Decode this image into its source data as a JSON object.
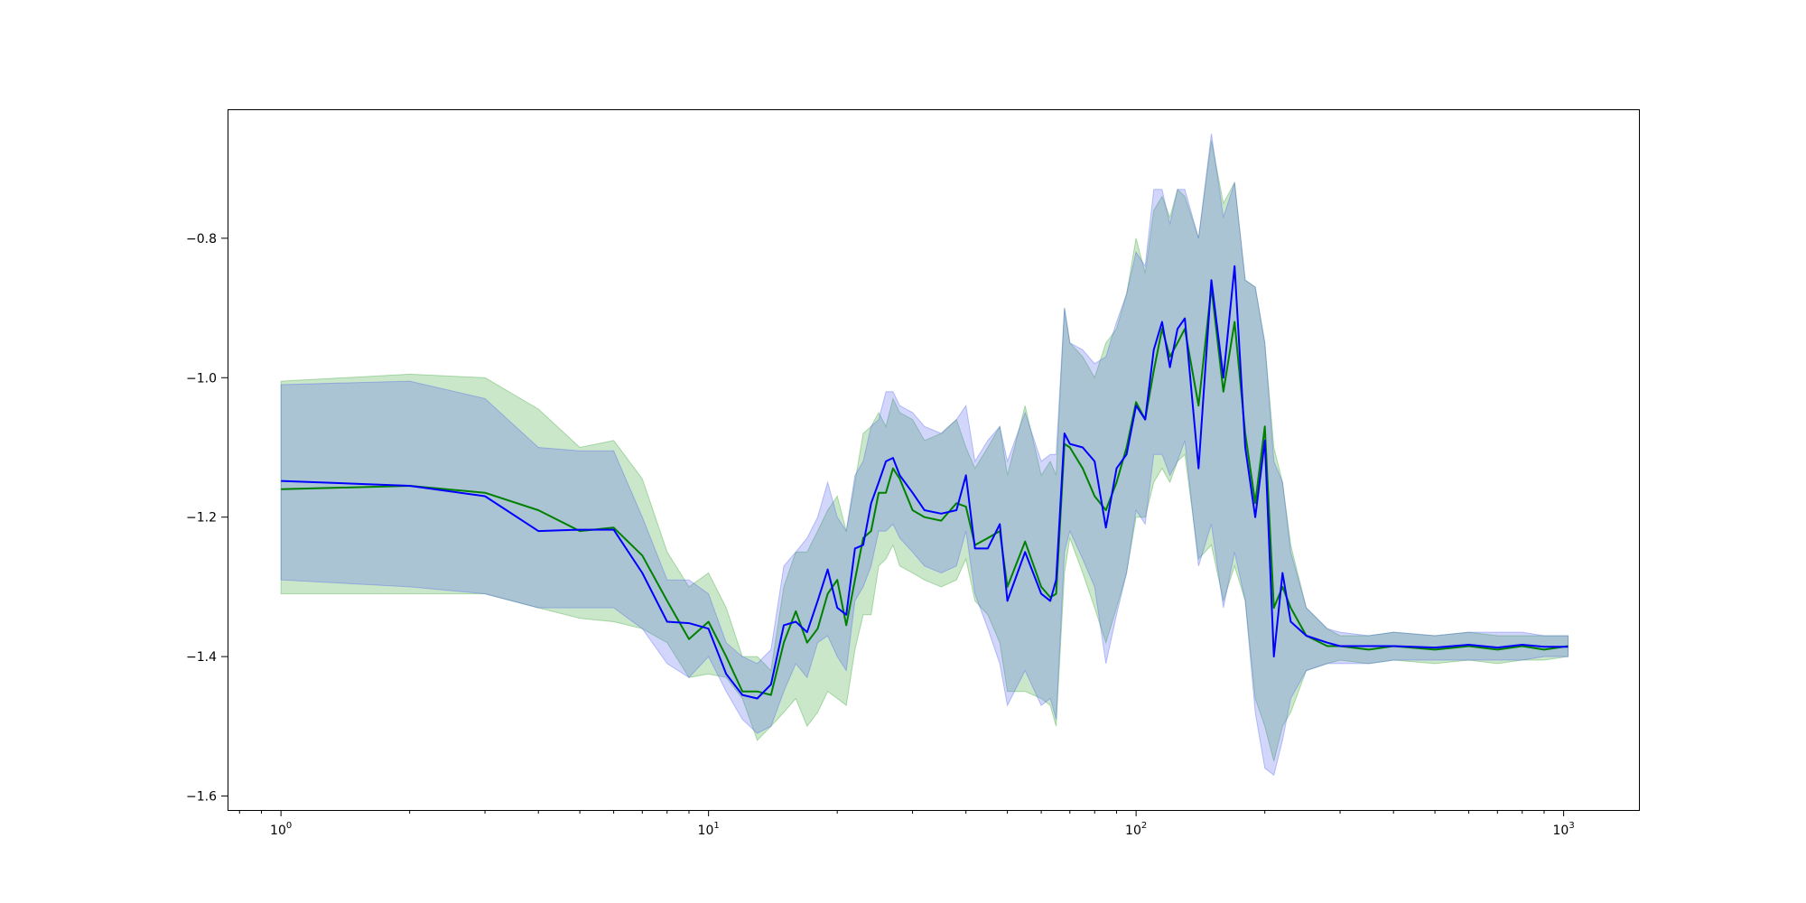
{
  "chart_data": {
    "type": "line",
    "xscale": "log",
    "xlim": [
      0.75,
      1500
    ],
    "ylim": [
      -1.62,
      -0.615
    ],
    "xticks": [
      {
        "value": 1,
        "base": "10",
        "exp": "0"
      },
      {
        "value": 10,
        "base": "10",
        "exp": "1"
      },
      {
        "value": 100,
        "base": "10",
        "exp": "2"
      },
      {
        "value": 1000,
        "base": "10",
        "exp": "3"
      }
    ],
    "yticks": [
      {
        "value": -0.8,
        "label": "−0.8"
      },
      {
        "value": -1.0,
        "label": "−1.0"
      },
      {
        "value": -1.2,
        "label": "−1.2"
      },
      {
        "value": -1.4,
        "label": "−1.4"
      },
      {
        "value": -1.6,
        "label": "−1.6"
      }
    ],
    "grid": false,
    "colors": {
      "green_line": "#008000",
      "green_band": "#2ca02c",
      "blue_line": "#0000ff",
      "blue_band": "#4a5bf0"
    },
    "series": [
      {
        "color": "green",
        "x": [
          1,
          2,
          3,
          4,
          5,
          6,
          7,
          8,
          9,
          10,
          11,
          12,
          13,
          14,
          15,
          16,
          17,
          18,
          19,
          20,
          21,
          22,
          23,
          24,
          25,
          26,
          27,
          28,
          30,
          32,
          35,
          38,
          40,
          42,
          45,
          48,
          50,
          55,
          60,
          63,
          65,
          68,
          70,
          75,
          80,
          85,
          90,
          95,
          100,
          105,
          110,
          115,
          120,
          125,
          130,
          140,
          150,
          160,
          170,
          180,
          190,
          200,
          210,
          220,
          230,
          250,
          280,
          300,
          350,
          400,
          500,
          600,
          700,
          800,
          900,
          1024
        ],
        "y": [
          -1.16,
          -1.155,
          -1.165,
          -1.19,
          -1.22,
          -1.215,
          -1.255,
          -1.32,
          -1.375,
          -1.35,
          -1.4,
          -1.45,
          -1.45,
          -1.455,
          -1.38,
          -1.335,
          -1.38,
          -1.36,
          -1.31,
          -1.29,
          -1.355,
          -1.29,
          -1.23,
          -1.22,
          -1.165,
          -1.165,
          -1.13,
          -1.145,
          -1.19,
          -1.2,
          -1.205,
          -1.18,
          -1.185,
          -1.24,
          -1.23,
          -1.22,
          -1.3,
          -1.235,
          -1.3,
          -1.315,
          -1.31,
          -1.095,
          -1.1,
          -1.13,
          -1.17,
          -1.19,
          -1.15,
          -1.1,
          -1.035,
          -1.06,
          -0.99,
          -0.93,
          -0.97,
          -0.95,
          -0.93,
          -1.04,
          -0.87,
          -1.02,
          -0.92,
          -1.08,
          -1.18,
          -1.07,
          -1.33,
          -1.3,
          -1.33,
          -1.37,
          -1.385,
          -1.385,
          -1.39,
          -1.385,
          -1.39,
          -1.385,
          -1.39,
          -1.385,
          -1.39,
          -1.385
        ],
        "lower": [
          -1.31,
          -1.31,
          -1.31,
          -1.33,
          -1.345,
          -1.35,
          -1.36,
          -1.38,
          -1.43,
          -1.425,
          -1.43,
          -1.46,
          -1.52,
          -1.5,
          -1.48,
          -1.46,
          -1.5,
          -1.48,
          -1.45,
          -1.46,
          -1.47,
          -1.39,
          -1.34,
          -1.34,
          -1.27,
          -1.26,
          -1.24,
          -1.27,
          -1.28,
          -1.29,
          -1.3,
          -1.29,
          -1.26,
          -1.32,
          -1.34,
          -1.38,
          -1.45,
          -1.45,
          -1.46,
          -1.47,
          -1.5,
          -1.28,
          -1.23,
          -1.28,
          -1.33,
          -1.38,
          -1.33,
          -1.28,
          -1.2,
          -1.2,
          -1.15,
          -1.13,
          -1.15,
          -1.12,
          -1.11,
          -1.26,
          -1.24,
          -1.32,
          -1.27,
          -1.32,
          -1.46,
          -1.5,
          -1.55,
          -1.5,
          -1.48,
          -1.42,
          -1.41,
          -1.405,
          -1.41,
          -1.405,
          -1.41,
          -1.405,
          -1.41,
          -1.405,
          -1.405,
          -1.4
        ],
        "upper": [
          -1.005,
          -0.995,
          -1.0,
          -1.045,
          -1.1,
          -1.09,
          -1.145,
          -1.25,
          -1.3,
          -1.28,
          -1.33,
          -1.4,
          -1.4,
          -1.42,
          -1.3,
          -1.25,
          -1.25,
          -1.22,
          -1.19,
          -1.17,
          -1.22,
          -1.15,
          -1.08,
          -1.07,
          -1.05,
          -1.07,
          -1.03,
          -1.05,
          -1.06,
          -1.09,
          -1.08,
          -1.06,
          -1.1,
          -1.13,
          -1.1,
          -1.07,
          -1.14,
          -1.04,
          -1.14,
          -1.12,
          -1.14,
          -0.9,
          -0.95,
          -0.97,
          -1.0,
          -0.95,
          -0.93,
          -0.88,
          -0.8,
          -0.85,
          -0.76,
          -0.74,
          -0.77,
          -0.73,
          -0.74,
          -0.8,
          -0.66,
          -0.75,
          -0.72,
          -0.86,
          -0.87,
          -0.95,
          -1.1,
          -1.15,
          -1.24,
          -1.33,
          -1.36,
          -1.37,
          -1.37,
          -1.365,
          -1.37,
          -1.365,
          -1.37,
          -1.37,
          -1.37,
          -1.37
        ]
      },
      {
        "color": "blue",
        "x": [
          1,
          2,
          3,
          4,
          5,
          6,
          7,
          8,
          9,
          10,
          11,
          12,
          13,
          14,
          15,
          16,
          17,
          18,
          19,
          20,
          21,
          22,
          23,
          24,
          25,
          26,
          27,
          28,
          30,
          32,
          35,
          38,
          40,
          42,
          45,
          48,
          50,
          55,
          60,
          63,
          65,
          68,
          70,
          75,
          80,
          85,
          90,
          95,
          100,
          105,
          110,
          115,
          120,
          125,
          130,
          140,
          150,
          160,
          170,
          180,
          190,
          200,
          210,
          220,
          230,
          250,
          280,
          300,
          350,
          400,
          500,
          600,
          700,
          800,
          900,
          1024
        ],
        "y": [
          -1.148,
          -1.155,
          -1.17,
          -1.22,
          -1.218,
          -1.218,
          -1.28,
          -1.35,
          -1.352,
          -1.36,
          -1.425,
          -1.455,
          -1.46,
          -1.44,
          -1.355,
          -1.35,
          -1.365,
          -1.32,
          -1.275,
          -1.33,
          -1.34,
          -1.245,
          -1.24,
          -1.18,
          -1.15,
          -1.12,
          -1.115,
          -1.14,
          -1.165,
          -1.19,
          -1.195,
          -1.19,
          -1.14,
          -1.245,
          -1.245,
          -1.21,
          -1.32,
          -1.25,
          -1.31,
          -1.32,
          -1.29,
          -1.08,
          -1.095,
          -1.1,
          -1.12,
          -1.215,
          -1.13,
          -1.11,
          -1.04,
          -1.06,
          -0.96,
          -0.92,
          -0.985,
          -0.93,
          -0.915,
          -1.13,
          -0.86,
          -1.0,
          -0.84,
          -1.1,
          -1.2,
          -1.09,
          -1.4,
          -1.28,
          -1.35,
          -1.37,
          -1.38,
          -1.385,
          -1.385,
          -1.385,
          -1.387,
          -1.383,
          -1.387,
          -1.383,
          -1.386,
          -1.386
        ],
        "lower": [
          -1.29,
          -1.3,
          -1.31,
          -1.33,
          -1.33,
          -1.33,
          -1.36,
          -1.41,
          -1.43,
          -1.4,
          -1.45,
          -1.49,
          -1.51,
          -1.5,
          -1.45,
          -1.41,
          -1.43,
          -1.38,
          -1.37,
          -1.4,
          -1.42,
          -1.32,
          -1.3,
          -1.27,
          -1.22,
          -1.22,
          -1.21,
          -1.23,
          -1.25,
          -1.27,
          -1.28,
          -1.27,
          -1.22,
          -1.31,
          -1.36,
          -1.41,
          -1.47,
          -1.42,
          -1.47,
          -1.46,
          -1.49,
          -1.25,
          -1.22,
          -1.26,
          -1.3,
          -1.41,
          -1.34,
          -1.28,
          -1.19,
          -1.21,
          -1.11,
          -1.11,
          -1.14,
          -1.12,
          -1.09,
          -1.27,
          -1.21,
          -1.33,
          -1.25,
          -1.32,
          -1.48,
          -1.56,
          -1.57,
          -1.52,
          -1.46,
          -1.42,
          -1.41,
          -1.41,
          -1.41,
          -1.405,
          -1.405,
          -1.405,
          -1.405,
          -1.405,
          -1.4,
          -1.4
        ],
        "upper": [
          -1.01,
          -1.005,
          -1.03,
          -1.1,
          -1.105,
          -1.105,
          -1.2,
          -1.29,
          -1.29,
          -1.31,
          -1.38,
          -1.4,
          -1.41,
          -1.39,
          -1.27,
          -1.25,
          -1.23,
          -1.2,
          -1.15,
          -1.2,
          -1.22,
          -1.14,
          -1.12,
          -1.07,
          -1.06,
          -1.02,
          -1.02,
          -1.04,
          -1.05,
          -1.07,
          -1.08,
          -1.06,
          -1.04,
          -1.12,
          -1.09,
          -1.07,
          -1.12,
          -1.05,
          -1.12,
          -1.11,
          -1.11,
          -0.9,
          -0.95,
          -0.96,
          -0.98,
          -0.97,
          -0.92,
          -0.88,
          -0.82,
          -0.84,
          -0.73,
          -0.73,
          -0.78,
          -0.73,
          -0.73,
          -0.8,
          -0.65,
          -0.77,
          -0.72,
          -0.86,
          -0.87,
          -0.95,
          -1.12,
          -1.15,
          -1.25,
          -1.33,
          -1.36,
          -1.365,
          -1.37,
          -1.365,
          -1.37,
          -1.365,
          -1.365,
          -1.365,
          -1.37,
          -1.37
        ]
      }
    ]
  }
}
